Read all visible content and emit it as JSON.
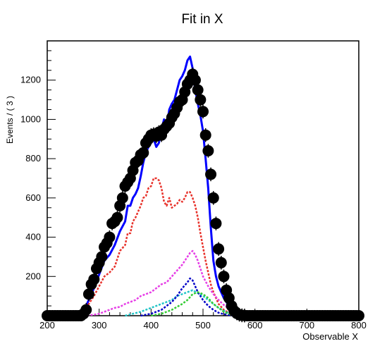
{
  "chart_data": {
    "type": "line",
    "title": "Fit in X",
    "xlabel": "Observable X",
    "ylabel": "Events / ( 3 )",
    "xlim": [
      200,
      800
    ],
    "ylim": [
      0,
      1400
    ],
    "x_ticks": [
      200,
      300,
      400,
      500,
      600,
      700,
      800
    ],
    "y_ticks": [
      200,
      400,
      600,
      800,
      1000,
      1200
    ],
    "grid": false,
    "legend": "none",
    "data_points": {
      "x": [
        200,
        205,
        210,
        215,
        220,
        225,
        230,
        235,
        240,
        245,
        250,
        255,
        260,
        265,
        270,
        275,
        280,
        285,
        290,
        295,
        300,
        305,
        310,
        315,
        320,
        325,
        330,
        335,
        340,
        345,
        350,
        355,
        360,
        365,
        370,
        375,
        380,
        385,
        390,
        395,
        400,
        405,
        410,
        415,
        420,
        425,
        430,
        435,
        440,
        445,
        450,
        455,
        460,
        465,
        470,
        475,
        480,
        485,
        490,
        495,
        500,
        505,
        510,
        515,
        520,
        525,
        530,
        535,
        540,
        545,
        550,
        555,
        560,
        565,
        570,
        575,
        580,
        585,
        590,
        595,
        600,
        605,
        610,
        615,
        620,
        625,
        630,
        635,
        640,
        645,
        650,
        655,
        660,
        665,
        670,
        675,
        680,
        685,
        690,
        695,
        700,
        705,
        710,
        715,
        720,
        725,
        730,
        735,
        740,
        745,
        750,
        755,
        760,
        765,
        770,
        775,
        780,
        785,
        790,
        795,
        800
      ],
      "y": [
        0,
        0,
        0,
        0,
        0,
        0,
        0,
        0,
        0,
        0,
        0,
        0,
        0,
        0,
        10,
        30,
        110,
        160,
        185,
        240,
        270,
        300,
        350,
        370,
        400,
        470,
        480,
        500,
        560,
        600,
        660,
        680,
        700,
        740,
        780,
        790,
        820,
        830,
        880,
        900,
        920,
        925,
        915,
        935,
        920,
        950,
        965,
        980,
        1010,
        1030,
        1060,
        1090,
        1100,
        1140,
        1180,
        1200,
        1230,
        1200,
        1150,
        1100,
        1040,
        920,
        840,
        720,
        600,
        470,
        340,
        270,
        200,
        130,
        90,
        50,
        25,
        12,
        5,
        2,
        1,
        0,
        0,
        0,
        0,
        0,
        0,
        0,
        0,
        0,
        0,
        0,
        0,
        0,
        0,
        0,
        0,
        0,
        0,
        0,
        0,
        0,
        0,
        0,
        0,
        0,
        0,
        0,
        0,
        0,
        0,
        0,
        0,
        0,
        0,
        0,
        0,
        0,
        0,
        0,
        0,
        0,
        0,
        0,
        0
      ],
      "error": 35,
      "color": "#000000",
      "marker": "filled-circle"
    },
    "series": [
      {
        "color": "#0000ff",
        "style": "solid",
        "x": [
          255,
          270,
          280,
          290,
          300,
          310,
          320,
          330,
          340,
          350,
          355,
          360,
          365,
          370,
          375,
          380,
          385,
          390,
          395,
          400,
          405,
          410,
          415,
          420,
          425,
          430,
          435,
          440,
          445,
          450,
          455,
          460,
          465,
          470,
          475,
          480,
          485,
          490,
          495,
          500,
          505,
          510,
          515,
          520,
          525,
          530,
          540,
          550,
          560,
          570,
          580,
          600,
          650,
          700,
          800
        ],
        "y": [
          0,
          20,
          80,
          140,
          210,
          280,
          310,
          360,
          430,
          480,
          560,
          560,
          600,
          620,
          650,
          710,
          780,
          830,
          860,
          880,
          900,
          860,
          880,
          950,
          1000,
          960,
          1050,
          1080,
          1100,
          1150,
          1200,
          1220,
          1250,
          1300,
          1320,
          1260,
          1150,
          1080,
          1020,
          940,
          800,
          650,
          450,
          280,
          200,
          150,
          90,
          50,
          30,
          15,
          10,
          5,
          0,
          0,
          0
        ]
      },
      {
        "color": "#e8322b",
        "style": "dashed",
        "x": [
          255,
          270,
          280,
          290,
          300,
          310,
          320,
          330,
          340,
          350,
          355,
          360,
          365,
          370,
          375,
          380,
          385,
          390,
          395,
          400,
          405,
          410,
          415,
          420,
          425,
          430,
          435,
          440,
          445,
          450,
          455,
          460,
          465,
          470,
          475,
          480,
          485,
          490,
          495,
          500,
          505,
          510,
          515,
          520,
          525,
          530,
          540,
          550,
          560,
          570,
          580,
          600,
          650,
          700,
          800
        ],
        "y": [
          0,
          15,
          60,
          100,
          150,
          200,
          220,
          250,
          330,
          360,
          420,
          420,
          480,
          500,
          530,
          560,
          600,
          610,
          650,
          660,
          700,
          700,
          690,
          650,
          580,
          560,
          600,
          550,
          560,
          570,
          590,
          580,
          600,
          630,
          630,
          600,
          560,
          500,
          420,
          350,
          280,
          220,
          160,
          120,
          90,
          60,
          30,
          15,
          8,
          3,
          1,
          0,
          0,
          0,
          0
        ]
      },
      {
        "color": "#e63ee6",
        "style": "dashed",
        "x": [
          270,
          290,
          300,
          310,
          320,
          330,
          340,
          350,
          360,
          370,
          380,
          390,
          400,
          410,
          420,
          430,
          440,
          450,
          460,
          470,
          475,
          480,
          485,
          490,
          495,
          500,
          510,
          520,
          530,
          540,
          550,
          560,
          570,
          580,
          600,
          700,
          800
        ],
        "y": [
          0,
          5,
          10,
          20,
          30,
          40,
          45,
          60,
          70,
          80,
          100,
          110,
          120,
          140,
          160,
          170,
          200,
          230,
          260,
          300,
          320,
          330,
          310,
          280,
          240,
          200,
          150,
          110,
          80,
          55,
          35,
          20,
          10,
          5,
          0,
          0,
          0
        ]
      },
      {
        "color": "#22c5c8",
        "style": "dashed",
        "x": [
          350,
          380,
          400,
          420,
          440,
          450,
          460,
          470,
          480,
          490,
          500,
          510,
          520,
          530,
          540,
          550,
          560,
          570,
          580,
          600,
          700,
          800
        ],
        "y": [
          0,
          20,
          40,
          60,
          80,
          100,
          110,
          120,
          130,
          115,
          100,
          80,
          60,
          40,
          25,
          12,
          5,
          2,
          1,
          0,
          0,
          0
        ]
      },
      {
        "color": "#0000c8",
        "style": "dashed",
        "x": [
          380,
          400,
          420,
          430,
          440,
          450,
          460,
          470,
          475,
          480,
          485,
          490,
          500,
          510,
          520,
          530,
          540,
          550,
          560,
          570,
          580,
          600,
          700,
          800
        ],
        "y": [
          0,
          10,
          30,
          50,
          70,
          100,
          140,
          170,
          190,
          180,
          150,
          120,
          80,
          50,
          30,
          15,
          8,
          3,
          1,
          0,
          0,
          0,
          0,
          0
        ]
      },
      {
        "color": "#33cc33",
        "style": "dashed",
        "x": [
          400,
          420,
          440,
          460,
          470,
          480,
          490,
          500,
          510,
          520,
          530,
          540,
          550,
          560,
          570,
          580,
          600,
          700,
          800
        ],
        "y": [
          0,
          10,
          30,
          60,
          80,
          110,
          120,
          110,
          90,
          60,
          40,
          20,
          10,
          5,
          2,
          1,
          0,
          0,
          0
        ]
      }
    ]
  }
}
